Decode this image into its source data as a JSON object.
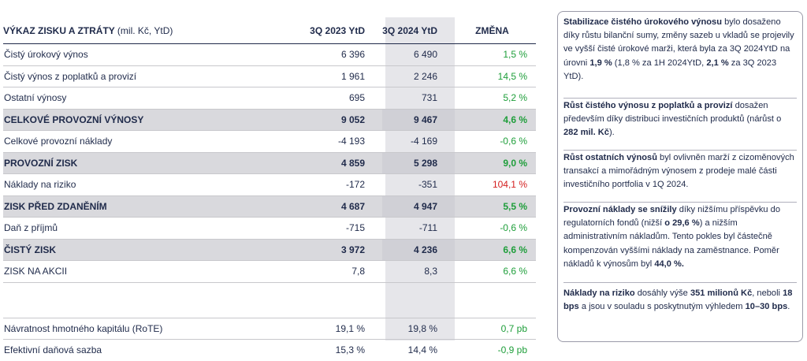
{
  "table": {
    "header": {
      "title": "VÝKAZ ZISKU A ZTRÁTY",
      "unit": "(mil. Kč, YtD)",
      "col1": "3Q 2023 YtD",
      "col2": "3Q 2024 YtD",
      "col3": "ZMĚNA"
    },
    "rows": [
      {
        "label": "Čistý úrokový výnos",
        "v1": "6 396",
        "v2": "6 490",
        "chg": "1,5 %"
      },
      {
        "label": "Čistý výnos z poplatků a provizí",
        "v1": "1 961",
        "v2": "2 246",
        "chg": "14,5 %"
      },
      {
        "label": "Ostatní výnosy",
        "v1": "695",
        "v2": "731",
        "chg": "5,2 %"
      },
      {
        "label": "CELKOVÉ PROVOZNÍ VÝNOSY",
        "v1": "9 052",
        "v2": "9 467",
        "chg": "4,6 %"
      },
      {
        "label": "Celkové provozní náklady",
        "v1": "-4 193",
        "v2": "-4 169",
        "chg": "-0,6 %"
      },
      {
        "label": "PROVOZNÍ ZISK",
        "v1": "4 859",
        "v2": "5 298",
        "chg": "9,0 %"
      },
      {
        "label": "Náklady na riziko",
        "v1": "-172",
        "v2": "-351",
        "chg": "104,1 %"
      },
      {
        "label": "ZISK PŘED ZDANĚNÍM",
        "v1": "4 687",
        "v2": "4 947",
        "chg": "5,5 %"
      },
      {
        "label": "Daň z příjmů",
        "v1": "-715",
        "v2": "-711",
        "chg": "-0,6 %"
      },
      {
        "label": "ČISTÝ ZISK",
        "v1": "3 972",
        "v2": "4 236",
        "chg": "6,6 %"
      },
      {
        "label": "ZISK NA AKCII",
        "v1": "7,8",
        "v2": "8,3",
        "chg": "6,6 %"
      },
      {
        "label": "Návratnost hmotného kapitálu (RoTE)",
        "v1": "19,1 %",
        "v2": "19,8 %",
        "chg": "0,7 pb"
      },
      {
        "label": "Efektivní daňová sazba",
        "v1": "15,3 %",
        "v2": "14,4 %",
        "chg": "-0,9 pb"
      }
    ]
  },
  "notes": {
    "n1": {
      "b1": "Stabilizace čistého úrokového výnosu",
      "t1": " bylo dosaženo díky růstu bilanční sumy, změny sazeb u vkladů se projevily ve vyšší čisté úrokové marži, která byla za 3Q 2024YtD na úrovni ",
      "b2": "1,9 %",
      "t2": " (1,8 % za 1H 2024YtD, ",
      "b3": "2,1 %",
      "t3": " za 3Q 2023 YtD)."
    },
    "n2": {
      "b1": "Růst čistého výnosu z poplatků a provizí",
      "t1": " dosažen především díky distribuci investičních produktů (nárůst o ",
      "b2": "282 mil. Kč",
      "t2": ")."
    },
    "n3": {
      "b1": "Růst ostatních výnosů",
      "t1": " byl ovlivněn marží z cizoměnových transakcí a mimořádným výnosem z prodeje malé části investičního portfolia v 1Q 2024."
    },
    "n4": {
      "b1": "Provozní náklady se snížily",
      "t1": " díky nižšímu příspěvku do regulatorních fondů (nižší ",
      "b2": "o 29,6 %",
      "t2": ") a nižším administrativním nákladům. Tento pokles byl částečně kompenzován vyššími náklady na zaměstnance. Poměr nákladů k výnosům byl ",
      "b3": "44,0 %."
    },
    "n5": {
      "b1": "Náklady na riziko",
      "t1": " dosáhly výše ",
      "b2": "351 milionů Kč",
      "t2": ", neboli ",
      "b3": "18 bps",
      "t3": " a jsou v souladu s poskytnutým výhledem ",
      "b4": "10–30 bps",
      "t4": "."
    }
  }
}
